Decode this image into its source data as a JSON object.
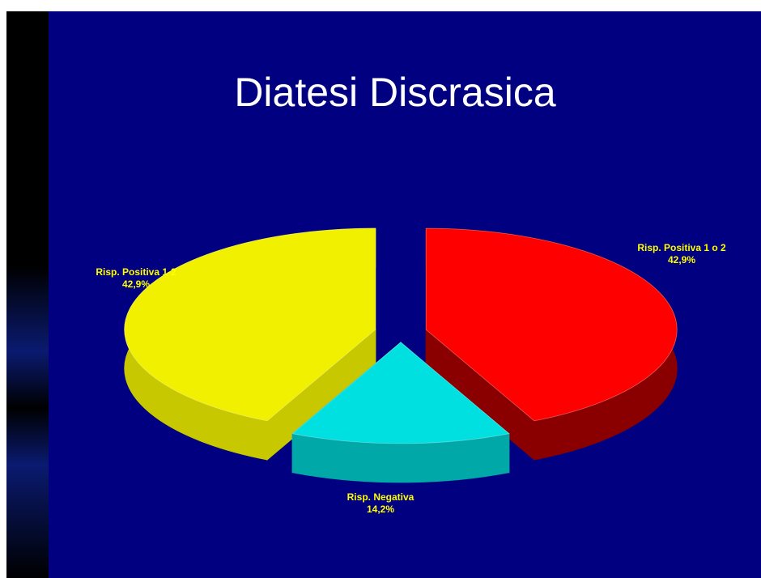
{
  "chart_data": {
    "type": "pie",
    "title": "Diatesi  Discrasica",
    "categories": [
      "Risp. Positiva 1 o 2",
      "Risp. Negativa",
      "Risp. Positiva 1-2"
    ],
    "values": [
      42.9,
      14.2,
      42.9
    ],
    "value_labels": [
      "42,9%",
      "14,2%",
      "42,9%"
    ],
    "colors": [
      "#ff0000",
      "#00e0e0",
      "#f0f000"
    ],
    "side_colors": [
      "#8a0000",
      "#00a8a8",
      "#c8c800"
    ]
  }
}
